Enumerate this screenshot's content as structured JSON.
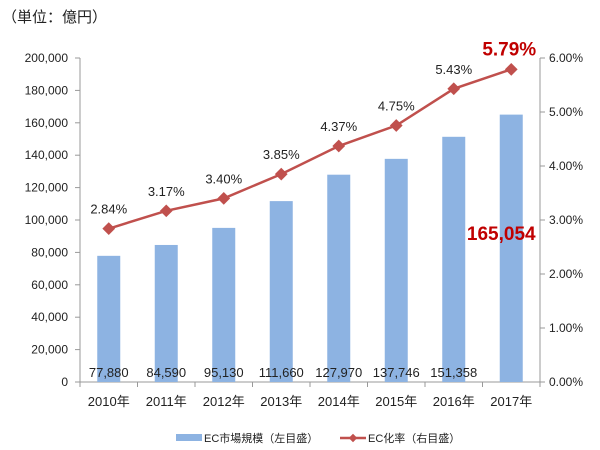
{
  "chart_data": {
    "type": "bar+line",
    "unit_label": "（単位：億円）",
    "categories": [
      "2010年",
      "2011年",
      "2012年",
      "2013年",
      "2014年",
      "2015年",
      "2016年",
      "2017年"
    ],
    "series": [
      {
        "name": "EC市場規模（左目盛）",
        "type": "bar",
        "axis": "left",
        "color": "#8db3e2",
        "values": [
          77880,
          84590,
          95130,
          111660,
          127970,
          137746,
          151358,
          165054
        ],
        "labels": [
          "77,880",
          "84,590",
          "95,130",
          "111,660",
          "127,970",
          "137,746",
          "151,358",
          "165,054"
        ]
      },
      {
        "name": "EC化率（右目盛）",
        "type": "line",
        "axis": "right",
        "color": "#c0504d",
        "values": [
          2.84,
          3.17,
          3.4,
          3.85,
          4.37,
          4.75,
          5.43,
          5.79
        ],
        "labels": [
          "2.84%",
          "3.17%",
          "3.40%",
          "3.85%",
          "4.37%",
          "4.75%",
          "5.43%",
          "5.79%"
        ]
      }
    ],
    "highlight_color": "#c00000",
    "left_axis": {
      "ylim": [
        0,
        200000
      ],
      "ticks": [
        "0",
        "20,000",
        "40,000",
        "60,000",
        "80,000",
        "100,000",
        "120,000",
        "140,000",
        "160,000",
        "180,000",
        "200,000"
      ]
    },
    "right_axis": {
      "ylim": [
        0,
        6
      ],
      "ticks": [
        "0.00%",
        "1.00%",
        "2.00%",
        "3.00%",
        "4.00%",
        "5.00%",
        "6.00%"
      ]
    },
    "grid": false,
    "legend_position": "bottom"
  }
}
